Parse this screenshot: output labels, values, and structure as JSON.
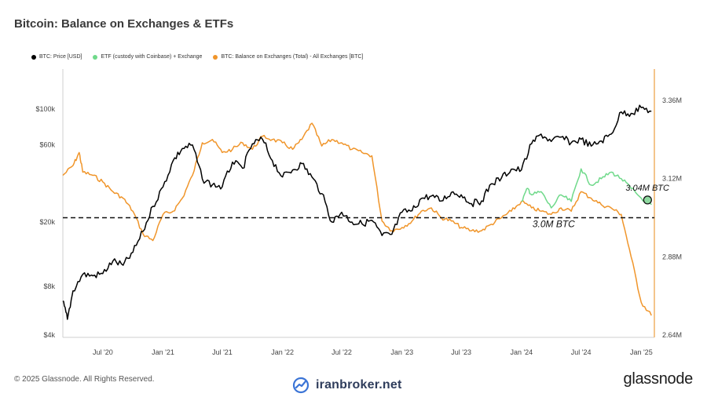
{
  "title": "Bitcoin: Balance on Exchanges & ETFs",
  "legend": [
    {
      "label": "BTC: Price [USD]",
      "color": "#000000"
    },
    {
      "label": "ETF (custody with Coinbase) + Exchange",
      "color": "#6fd98a"
    },
    {
      "label": "BTC: Balance on Exchanges (Total) - All Exchanges [BTC]",
      "color": "#f0952a"
    }
  ],
  "footer": {
    "copyright": "© 2025 Glassnode. All Rights Reserved.",
    "watermark": "iranbroker.net",
    "brand": "glassnode"
  },
  "chart_data": {
    "type": "line",
    "title": "Bitcoin: Balance on Exchanges & ETFs",
    "x_tick_labels": [
      "Jul '20",
      "Jan '21",
      "Jul '21",
      "Jan '22",
      "Jul '22",
      "Jan '23",
      "Jul '23",
      "Jan '24",
      "Jul '24",
      "Jan '25"
    ],
    "x_range": [
      "2020-03",
      "2025-02"
    ],
    "y_left": {
      "scale": "log",
      "ticks": [
        "$4k",
        "$8k",
        "$20k",
        "$60k",
        "$100k"
      ],
      "tick_values": [
        4000,
        8000,
        20000,
        60000,
        100000
      ]
    },
    "y_right": {
      "ticks": [
        "2.64M",
        "2.88M",
        "3.12M",
        "3.36M"
      ],
      "range": [
        2640000,
        3360000
      ]
    },
    "reference_line": {
      "value": 3000000,
      "style": "dashed",
      "axis": "right"
    },
    "annotations": [
      {
        "text": "3.0M BTC",
        "x": "2024-01",
        "y": 2990000
      },
      {
        "text": "3.04M BTC",
        "x": "2025-01",
        "y": 3040000,
        "marker": true
      }
    ],
    "series": [
      {
        "name": "BTC: Price [USD]",
        "color": "#000000",
        "axis": "left",
        "points": [
          [
            "2020-03",
            6500
          ],
          [
            "2020-03-15",
            5000
          ],
          [
            "2020-04",
            7500
          ],
          [
            "2020-05",
            9500
          ],
          [
            "2020-06",
            9300
          ],
          [
            "2020-07",
            9600
          ],
          [
            "2020-08",
            11500
          ],
          [
            "2020-09",
            10800
          ],
          [
            "2020-10",
            13000
          ],
          [
            "2020-11",
            17500
          ],
          [
            "2020-12",
            25000
          ],
          [
            "2021-01",
            33000
          ],
          [
            "2021-02",
            48000
          ],
          [
            "2021-03",
            57000
          ],
          [
            "2021-04",
            60000
          ],
          [
            "2021-05",
            37000
          ],
          [
            "2021-06",
            34000
          ],
          [
            "2021-07",
            33000
          ],
          [
            "2021-08",
            47000
          ],
          [
            "2021-09",
            43000
          ],
          [
            "2021-10",
            61000
          ],
          [
            "2021-11",
            65000
          ],
          [
            "2021-12",
            48000
          ],
          [
            "2022-01",
            38000
          ],
          [
            "2022-02",
            42000
          ],
          [
            "2022-03",
            46000
          ],
          [
            "2022-04",
            38000
          ],
          [
            "2022-05",
            30000
          ],
          [
            "2022-06",
            20000
          ],
          [
            "2022-07",
            23000
          ],
          [
            "2022-08",
            20000
          ],
          [
            "2022-09",
            19500
          ],
          [
            "2022-10",
            20500
          ],
          [
            "2022-11",
            16500
          ],
          [
            "2022-12",
            16800
          ],
          [
            "2023-01",
            23000
          ],
          [
            "2023-02",
            23500
          ],
          [
            "2023-03",
            28000
          ],
          [
            "2023-04",
            29000
          ],
          [
            "2023-05",
            27000
          ],
          [
            "2023-06",
            30500
          ],
          [
            "2023-07",
            29500
          ],
          [
            "2023-08",
            26000
          ],
          [
            "2023-09",
            27000
          ],
          [
            "2023-10",
            34500
          ],
          [
            "2023-11",
            37500
          ],
          [
            "2023-12",
            42500
          ],
          [
            "2024-01",
            42000
          ],
          [
            "2024-02",
            61000
          ],
          [
            "2024-03",
            70000
          ],
          [
            "2024-04",
            63000
          ],
          [
            "2024-05",
            67000
          ],
          [
            "2024-06",
            62000
          ],
          [
            "2024-07",
            65000
          ],
          [
            "2024-08",
            59000
          ],
          [
            "2024-09",
            63500
          ],
          [
            "2024-10",
            70000
          ],
          [
            "2024-11",
            96000
          ],
          [
            "2024-12",
            94000
          ],
          [
            "2025-01",
            102000
          ],
          [
            "2025-02",
            97000
          ]
        ]
      },
      {
        "name": "ETF (custody with Coinbase) + Exchange",
        "color": "#6fd98a",
        "axis": "right",
        "points": [
          [
            "2024-01",
            3050000
          ],
          [
            "2024-01-20",
            3090000
          ],
          [
            "2024-02",
            3070000
          ],
          [
            "2024-03",
            3080000
          ],
          [
            "2024-04",
            3030000
          ],
          [
            "2024-05",
            3070000
          ],
          [
            "2024-06",
            3050000
          ],
          [
            "2024-07",
            3150000
          ],
          [
            "2024-08",
            3100000
          ],
          [
            "2024-09",
            3120000
          ],
          [
            "2024-10",
            3140000
          ],
          [
            "2024-11",
            3120000
          ],
          [
            "2024-12",
            3090000
          ],
          [
            "2025-01",
            3060000
          ],
          [
            "2025-02",
            3040000
          ]
        ]
      },
      {
        "name": "BTC: Balance on Exchanges (Total) - All Exchanges [BTC]",
        "color": "#f0952a",
        "axis": "right",
        "points": [
          [
            "2020-03",
            3130000
          ],
          [
            "2020-04",
            3160000
          ],
          [
            "2020-04-20",
            3200000
          ],
          [
            "2020-05",
            3140000
          ],
          [
            "2020-06",
            3130000
          ],
          [
            "2020-07",
            3110000
          ],
          [
            "2020-08",
            3080000
          ],
          [
            "2020-09",
            3060000
          ],
          [
            "2020-10",
            3020000
          ],
          [
            "2020-11",
            2950000
          ],
          [
            "2020-12",
            2930000
          ],
          [
            "2021-01",
            3010000
          ],
          [
            "2021-02",
            3020000
          ],
          [
            "2021-03",
            3060000
          ],
          [
            "2021-04",
            3130000
          ],
          [
            "2021-05",
            3230000
          ],
          [
            "2021-06",
            3240000
          ],
          [
            "2021-07",
            3200000
          ],
          [
            "2021-08",
            3210000
          ],
          [
            "2021-09",
            3230000
          ],
          [
            "2021-10",
            3210000
          ],
          [
            "2021-11",
            3250000
          ],
          [
            "2021-12",
            3240000
          ],
          [
            "2022-01",
            3230000
          ],
          [
            "2022-02",
            3210000
          ],
          [
            "2022-03",
            3240000
          ],
          [
            "2022-04",
            3290000
          ],
          [
            "2022-05",
            3220000
          ],
          [
            "2022-06",
            3240000
          ],
          [
            "2022-07",
            3230000
          ],
          [
            "2022-08",
            3210000
          ],
          [
            "2022-09",
            3200000
          ],
          [
            "2022-10",
            3190000
          ],
          [
            "2022-11",
            2990000
          ],
          [
            "2022-12",
            2960000
          ],
          [
            "2023-01",
            2970000
          ],
          [
            "2023-02",
            2990000
          ],
          [
            "2023-03",
            3020000
          ],
          [
            "2023-04",
            3030000
          ],
          [
            "2023-05",
            3000000
          ],
          [
            "2023-06",
            2990000
          ],
          [
            "2023-07",
            2970000
          ],
          [
            "2023-08",
            2960000
          ],
          [
            "2023-09",
            2960000
          ],
          [
            "2023-10",
            2980000
          ],
          [
            "2023-11",
            3000000
          ],
          [
            "2023-12",
            3020000
          ],
          [
            "2024-01",
            3050000
          ],
          [
            "2024-02",
            3030000
          ],
          [
            "2024-03",
            3020000
          ],
          [
            "2024-04",
            3010000
          ],
          [
            "2024-05",
            3030000
          ],
          [
            "2024-06",
            3020000
          ],
          [
            "2024-07",
            3080000
          ],
          [
            "2024-08",
            3060000
          ],
          [
            "2024-09",
            3040000
          ],
          [
            "2024-10",
            3030000
          ],
          [
            "2024-11",
            3010000
          ],
          [
            "2024-12",
            2880000
          ],
          [
            "2025-01",
            2740000
          ],
          [
            "2025-02",
            2700000
          ]
        ]
      }
    ],
    "grid": false,
    "legend_position": "top-left"
  }
}
